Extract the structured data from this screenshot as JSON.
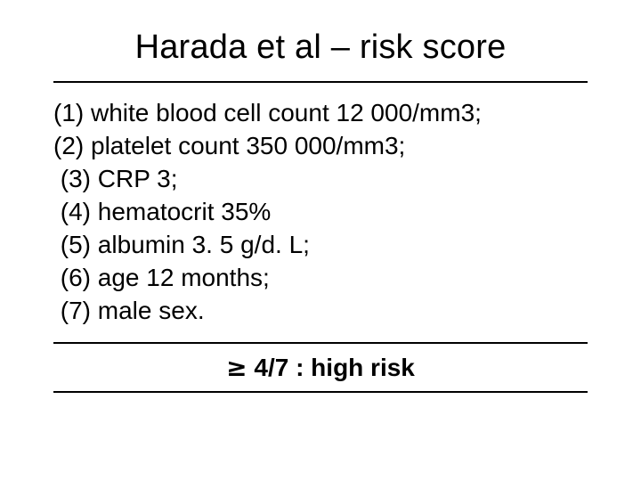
{
  "title": "Harada et al – risk score",
  "criteria": [
    "(1) white blood cell count 12 000/mm3;",
    "(2) platelet count 350 000/mm3;",
    " (3) CRP 3;",
    " (4) hematocrit 35%",
    " (5) albumin 3. 5 g/d. L;",
    " (6) age 12 months;",
    " (7) male sex."
  ],
  "footer_symbol": "≥",
  "footer_text": " 4/7 : high risk",
  "colors": {
    "background": "#ffffff",
    "text": "#000000",
    "rule": "#000000"
  }
}
